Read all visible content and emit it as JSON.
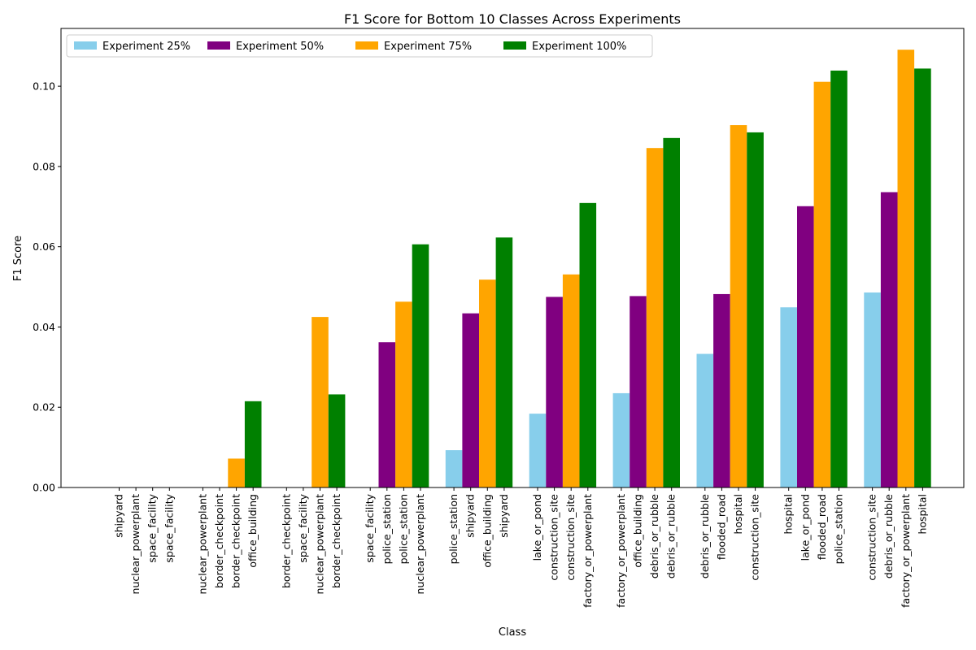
{
  "chart_data": {
    "type": "bar",
    "title": "F1 Score for Bottom 10 Classes Across Experiments",
    "xlabel": "Class",
    "ylabel": "F1 Score",
    "ylim": [
      0,
      0.1144
    ],
    "yticks": [
      "0.00",
      "0.02",
      "0.04",
      "0.06",
      "0.08",
      "0.10"
    ],
    "ytick_values": [
      0,
      0.02,
      0.04,
      0.06,
      0.08,
      0.1
    ],
    "grid": false,
    "legend_position": "top-left",
    "series": [
      {
        "name": "Experiment 25%",
        "color": "#87ceeb",
        "classes": [
          "shipyard",
          "nuclear_powerplant",
          "border_checkpoint",
          "space_facility",
          "police_station",
          "lake_or_pond",
          "factory_or_powerplant",
          "debris_or_rubble",
          "hospital",
          "construction_site"
        ],
        "values": [
          0,
          0,
          0,
          0,
          0.0093,
          0.0184,
          0.0235,
          0.0333,
          0.0449,
          0.0486
        ]
      },
      {
        "name": "Experiment 50%",
        "color": "#800080",
        "classes": [
          "nuclear_powerplant",
          "border_checkpoint",
          "space_facility",
          "police_station",
          "shipyard",
          "construction_site",
          "office_building",
          "flooded_road",
          "lake_or_pond",
          "debris_or_rubble"
        ],
        "values": [
          0,
          0,
          0,
          0.0362,
          0.0434,
          0.0475,
          0.0477,
          0.0482,
          0.0701,
          0.0736
        ]
      },
      {
        "name": "Experiment 75%",
        "color": "#ffa500",
        "classes": [
          "space_facility",
          "border_checkpoint",
          "nuclear_powerplant",
          "police_station",
          "office_building",
          "construction_site",
          "debris_or_rubble",
          "hospital",
          "flooded_road",
          "factory_or_powerplant"
        ],
        "values": [
          0,
          0.0072,
          0.0425,
          0.0463,
          0.0518,
          0.0531,
          0.0846,
          0.0903,
          0.1011,
          0.1091
        ]
      },
      {
        "name": "Experiment 100%",
        "color": "#008000",
        "classes": [
          "space_facility",
          "office_building",
          "border_checkpoint",
          "nuclear_powerplant",
          "shipyard",
          "factory_or_powerplant",
          "debris_or_rubble",
          "construction_site",
          "police_station",
          "hospital"
        ],
        "values": [
          0,
          0.0215,
          0.0232,
          0.0606,
          0.0623,
          0.0709,
          0.0871,
          0.0885,
          0.1039,
          0.1044
        ]
      }
    ]
  }
}
